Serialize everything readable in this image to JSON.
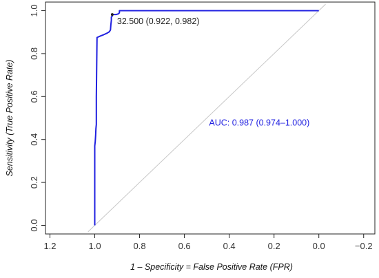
{
  "chart_data": {
    "type": "line",
    "xlabel": "1 – Specificity = False Positive Rate (FPR)",
    "ylabel": "Sensitivity (True Positive Rate)",
    "x_axis_reversed": true,
    "xlim": [
      1.22,
      -0.25
    ],
    "ylim": [
      -0.04,
      1.04
    ],
    "x_ticks": [
      1.2,
      1.0,
      0.8,
      0.6,
      0.4,
      0.2,
      0.0,
      -0.2
    ],
    "x_tick_labels": [
      "1.2",
      "1.0",
      "0.8",
      "0.6",
      "0.4",
      "0.2",
      "0.0",
      "−0.2"
    ],
    "y_ticks": [
      0.0,
      0.2,
      0.4,
      0.6,
      0.8,
      1.0
    ],
    "y_tick_labels": [
      "0.0",
      "0.2",
      "0.4",
      "0.6",
      "0.8",
      "1.0"
    ],
    "grid": false,
    "colors": {
      "roc": "#2020e0",
      "diagonal": "#c8c8c8",
      "auc_text": "#2020e0",
      "threshold_text": "#222222"
    },
    "series": [
      {
        "x": [
          1.0,
          1.0,
          0.998,
          0.996,
          0.995,
          0.993,
          0.993,
          0.99,
          0.975,
          0.96,
          0.945,
          0.935,
          0.93,
          0.928,
          0.926,
          0.926,
          0.922,
          0.922,
          0.915,
          0.905,
          0.895,
          0.89,
          0.89,
          0.0
        ],
        "y": [
          0.0,
          0.37,
          0.39,
          0.42,
          0.45,
          0.47,
          0.6,
          0.875,
          0.882,
          0.888,
          0.895,
          0.902,
          0.91,
          0.935,
          0.955,
          0.97,
          0.975,
          0.982,
          0.982,
          0.982,
          0.985,
          0.99,
          1.0,
          1.0
        ]
      }
    ],
    "diagonal": {
      "x": [
        1.03,
        -0.03
      ],
      "y": [
        -0.03,
        1.03
      ]
    },
    "threshold_point": {
      "x": 0.922,
      "y": 0.982
    },
    "annotations": {
      "threshold": "32.500 (0.922, 0.982)",
      "auc": "AUC: 0.987 (0.974–1.000)"
    }
  }
}
